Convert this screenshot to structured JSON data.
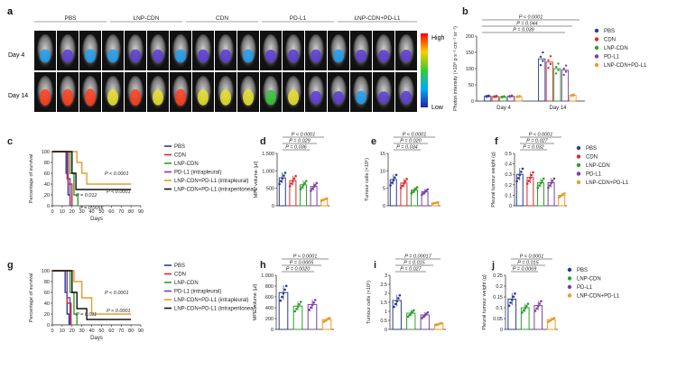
{
  "panels": {
    "a": {
      "letter": "a",
      "groups": [
        "PBS",
        "LNP-CDN",
        "CDN",
        "PD-L1",
        "LNP-CDN+PD-L1"
      ],
      "rows": [
        "Day 4",
        "Day 14"
      ],
      "scale": {
        "high": "High",
        "low": "Low"
      }
    },
    "b": {
      "letter": "b"
    },
    "c": {
      "letter": "c"
    },
    "d": {
      "letter": "d"
    },
    "e": {
      "letter": "e"
    },
    "f": {
      "letter": "f"
    },
    "g": {
      "letter": "g"
    },
    "h": {
      "letter": "h"
    },
    "i": {
      "letter": "i"
    },
    "j": {
      "letter": "j"
    }
  },
  "colors": {
    "PBS": "#2b3a8f",
    "CDN": "#d62b2b",
    "LNP-CDN": "#2ca02c",
    "PD-L1": "#7b3fa6",
    "LNP-CDN+PD-L1": "#e89b2b",
    "IP": "#111111"
  },
  "chart_data": [
    {
      "id": "b",
      "type": "bar",
      "categories": [
        "Day 4",
        "Day 14"
      ],
      "ylabel": "Photon intensity (×10⁸ p s⁻¹ cm⁻² sr⁻¹)",
      "ylim": [
        0,
        200
      ],
      "yticks": [
        0,
        50,
        100,
        150,
        200
      ],
      "series": [
        {
          "name": "PBS",
          "values": [
            15,
            130
          ]
        },
        {
          "name": "CDN",
          "values": [
            14,
            120
          ]
        },
        {
          "name": "LNP-CDN",
          "values": [
            13,
            100
          ]
        },
        {
          "name": "PD-L1",
          "values": [
            15,
            95
          ]
        },
        {
          "name": "LNP-CDN+PD-L1",
          "values": [
            14,
            18
          ]
        }
      ],
      "annotations": [
        "P < 0.0001",
        "P = 0.044",
        "P = 0.039"
      ],
      "legend": "right"
    },
    {
      "id": "c",
      "type": "line",
      "xlabel": "Days",
      "ylabel": "Percentage of survival",
      "xlim": [
        0,
        90
      ],
      "xticks": [
        0,
        10,
        20,
        30,
        40,
        50,
        60,
        70,
        80,
        90
      ],
      "ylim": [
        0,
        100
      ],
      "yticks": [
        0,
        20,
        40,
        60,
        80,
        100
      ],
      "series": [
        {
          "name": "PBS",
          "points": [
            [
              0,
              100
            ],
            [
              12,
              100
            ],
            [
              14,
              60
            ],
            [
              16,
              20
            ],
            [
              18,
              0
            ]
          ]
        },
        {
          "name": "CDN",
          "points": [
            [
              0,
              100
            ],
            [
              13,
              100
            ],
            [
              16,
              40
            ],
            [
              20,
              0
            ]
          ]
        },
        {
          "name": "LNP-CDN",
          "points": [
            [
              0,
              100
            ],
            [
              14,
              100
            ],
            [
              18,
              60
            ],
            [
              22,
              20
            ],
            [
              26,
              0
            ]
          ]
        },
        {
          "name": "PD-L1 (intrapleural)",
          "points": [
            [
              0,
              100
            ],
            [
              12,
              100
            ],
            [
              15,
              50
            ],
            [
              18,
              0
            ]
          ]
        },
        {
          "name": "LNP-CDN+PD-L1 (intrapleural)",
          "points": [
            [
              0,
              100
            ],
            [
              20,
              100
            ],
            [
              25,
              80
            ],
            [
              30,
              60
            ],
            [
              35,
              40
            ],
            [
              80,
              40
            ]
          ]
        },
        {
          "name": "LNP-CDN+PD-L1 (intraperitoneal)",
          "points": [
            [
              0,
              100
            ],
            [
              16,
              100
            ],
            [
              20,
              60
            ],
            [
              24,
              30
            ],
            [
              80,
              30
            ]
          ]
        }
      ],
      "annotations": [
        "P < 0.0001",
        "P = 0.012",
        "P < 0.0001",
        "P = 0.0056"
      ],
      "legend": "right"
    },
    {
      "id": "d",
      "type": "bar",
      "categories": [
        "PBS",
        "CDN",
        "LNP-CDN",
        "PD-L1",
        "LNP-CDN+PD-L1"
      ],
      "ylabel": "MPE volume (μl)",
      "ylim": [
        0,
        1500
      ],
      "yticks": [
        0,
        500,
        1000,
        1500
      ],
      "values": [
        800,
        720,
        600,
        550,
        180
      ],
      "annotations": [
        "P < 0.0001",
        "P = 0.029",
        "P = 0.036"
      ]
    },
    {
      "id": "e",
      "type": "bar",
      "categories": [
        "PBS",
        "CDN",
        "LNP-CDN",
        "PD-L1",
        "LNP-CDN+PD-L1"
      ],
      "ylabel": "Tumour cells (×10⁶)",
      "ylim": [
        0,
        15
      ],
      "yticks": [
        0,
        5,
        10,
        15
      ],
      "values": [
        7.5,
        6.5,
        4.5,
        4.0,
        0.8
      ],
      "annotations": [
        "P < 0.0001",
        "P = 0.020",
        "P = 0.034"
      ]
    },
    {
      "id": "f",
      "type": "bar",
      "categories": [
        "PBS",
        "CDN",
        "LNP-CDN",
        "PD-L1",
        "LNP-CDN+PD-L1"
      ],
      "ylabel": "Pleural tumour weight (g)",
      "ylim": [
        0,
        0.5
      ],
      "yticks": [
        0.0,
        0.1,
        0.2,
        0.3,
        0.4,
        0.5
      ],
      "values": [
        0.3,
        0.27,
        0.22,
        0.22,
        0.1
      ],
      "annotations": [
        "P < 0.0001",
        "P = 0.027",
        "P = 0.032"
      ],
      "legend": "right"
    },
    {
      "id": "g",
      "type": "line",
      "xlabel": "Days",
      "ylabel": "Percentage of survival",
      "xlim": [
        0,
        90
      ],
      "xticks": [
        0,
        10,
        20,
        30,
        40,
        50,
        60,
        70,
        80,
        90
      ],
      "ylim": [
        0,
        100
      ],
      "yticks": [
        0,
        20,
        40,
        60,
        80,
        100
      ],
      "series": [
        {
          "name": "PBS",
          "points": [
            [
              0,
              100
            ],
            [
              10,
              100
            ],
            [
              13,
              60
            ],
            [
              15,
              20
            ],
            [
              17,
              0
            ]
          ]
        },
        {
          "name": "CDN",
          "points": [
            [
              0,
              100
            ],
            [
              12,
              100
            ],
            [
              15,
              40
            ],
            [
              19,
              0
            ]
          ]
        },
        {
          "name": "LNP-CDN",
          "points": [
            [
              0,
              100
            ],
            [
              14,
              100
            ],
            [
              18,
              60
            ],
            [
              22,
              20
            ],
            [
              25,
              0
            ]
          ]
        },
        {
          "name": "PD-L1 (intrapleural)",
          "points": [
            [
              0,
              100
            ],
            [
              12,
              100
            ],
            [
              15,
              50
            ],
            [
              18,
              0
            ]
          ]
        },
        {
          "name": "LNP-CDN+PD-L1 (intrapleural)",
          "points": [
            [
              0,
              100
            ],
            [
              18,
              100
            ],
            [
              22,
              80
            ],
            [
              30,
              50
            ],
            [
              40,
              20
            ],
            [
              80,
              20
            ]
          ]
        },
        {
          "name": "LNP-CDN+PD-L1 (intraperitoneal)",
          "points": [
            [
              0,
              100
            ],
            [
              16,
              100
            ],
            [
              20,
              60
            ],
            [
              25,
              30
            ],
            [
              35,
              10
            ],
            [
              80,
              10
            ]
          ]
        }
      ],
      "annotations": [
        "P < 0.0001",
        "P = 0.011",
        "P < 0.0001"
      ],
      "legend": "right"
    },
    {
      "id": "h",
      "type": "bar",
      "categories": [
        "PBS",
        "LNP-CDN",
        "PD-L1",
        "LNP-CDN+PD-L1"
      ],
      "ylabel": "MPE volume (μl)",
      "ylim": [
        0,
        1000
      ],
      "yticks": [
        0,
        200,
        400,
        600,
        800,
        1000
      ],
      "values": [
        680,
        430,
        460,
        180
      ],
      "annotations": [
        "P < 0.0001",
        "P = 0.0005",
        "P = 0.0020"
      ]
    },
    {
      "id": "i",
      "type": "bar",
      "categories": [
        "PBS",
        "LNP-CDN",
        "PD-L1",
        "LNP-CDN+PD-L1"
      ],
      "ylabel": "Tumour cells (×10⁶)",
      "ylim": [
        0,
        3
      ],
      "yticks": [
        0.0,
        0.5,
        1.0,
        1.5,
        2.0,
        2.5,
        3.0
      ],
      "values": [
        1.6,
        0.9,
        0.8,
        0.3
      ],
      "annotations": [
        "P = 0.00017",
        "P = 0.015",
        "P = 0.027"
      ]
    },
    {
      "id": "j",
      "type": "bar",
      "categories": [
        "PBS",
        "LNP-CDN",
        "PD-L1",
        "LNP-CDN+PD-L1"
      ],
      "ylabel": "Pleural tumour weight (g)",
      "ylim": [
        0,
        0.25
      ],
      "yticks": [
        0.0,
        0.05,
        0.1,
        0.15,
        0.2,
        0.25
      ],
      "values": [
        0.14,
        0.1,
        0.11,
        0.045
      ],
      "annotations": [
        "P < 0.0001",
        "P = 0.015",
        "P = 0.0069"
      ],
      "legend": "right"
    }
  ]
}
